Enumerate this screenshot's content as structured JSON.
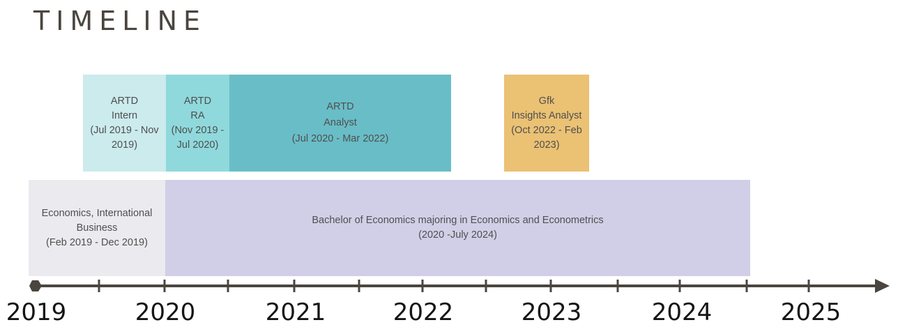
{
  "title": "TIMELINE",
  "jobs": [
    {
      "line1": "ARTD",
      "line2": "Intern",
      "line3": "(Jul 2019 - Nov",
      "line4": "2019)"
    },
    {
      "line1": "ARTD",
      "line2": "RA",
      "line3": "(Nov 2019 -",
      "line4": "Jul 2020)"
    },
    {
      "line1": "ARTD",
      "line2": "Analyst",
      "line3": "(Jul 2020 - Mar 2022)"
    },
    {
      "line1": "Gfk",
      "line2": "Insights Analyst",
      "line3": "(Oct 2022 - Feb",
      "line4": "2023)"
    }
  ],
  "education": [
    {
      "line1": "Economics, International",
      "line2": "Business",
      "line3": "(Feb 2019 - Dec 2019)"
    },
    {
      "line1": "Bachelor of Economics majoring in Economics and Econometrics",
      "line2": "(2020 -July 2024)"
    }
  ],
  "years": [
    "2019",
    "2020",
    "2021",
    "2022",
    "2023",
    "2024",
    "2025"
  ],
  "colors": {
    "axis": "#4a453f",
    "intern": "#cbebed",
    "ra": "#8fd9dc",
    "analyst": "#69bdc7",
    "gfk": "#ebc174",
    "econ": "#ebebef",
    "bachelor": "#d1cfe7"
  }
}
